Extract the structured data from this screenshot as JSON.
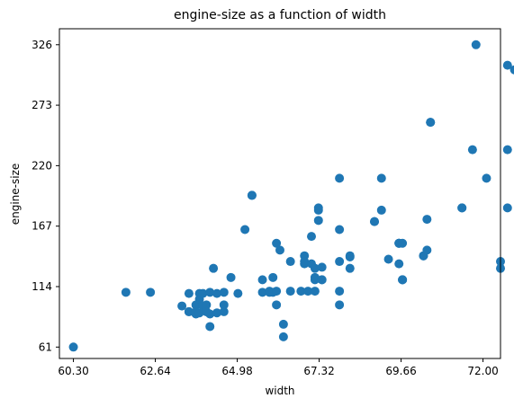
{
  "chart_data": {
    "type": "scatter",
    "title": "engine-size as a function of width",
    "xlabel": "width",
    "ylabel": "engine-size",
    "xlim": [
      59.9,
      72.5
    ],
    "ylim": [
      51,
      340
    ],
    "xticks": [
      60.3,
      62.64,
      64.98,
      67.32,
      69.66,
      72.0
    ],
    "xtick_labels": [
      "60.30",
      "62.64",
      "64.98",
      "67.32",
      "69.66",
      "72.00"
    ],
    "yticks": [
      61,
      114,
      167,
      220,
      273,
      326
    ],
    "ytick_labels": [
      "61",
      "114",
      "167",
      "220",
      "273",
      "326"
    ],
    "grid": false,
    "legend": false,
    "marker_color": "#1f77b4",
    "points": [
      [
        60.3,
        61
      ],
      [
        61.8,
        109
      ],
      [
        62.5,
        109
      ],
      [
        63.4,
        97
      ],
      [
        63.6,
        92
      ],
      [
        63.6,
        92
      ],
      [
        63.6,
        108
      ],
      [
        63.8,
        90
      ],
      [
        63.8,
        98
      ],
      [
        63.8,
        92
      ],
      [
        63.9,
        108
      ],
      [
        63.9,
        103
      ],
      [
        63.9,
        91
      ],
      [
        64.0,
        97
      ],
      [
        64.0,
        108
      ],
      [
        64.1,
        92
      ],
      [
        64.1,
        98
      ],
      [
        64.1,
        92
      ],
      [
        64.2,
        109
      ],
      [
        64.2,
        79
      ],
      [
        64.2,
        90
      ],
      [
        64.3,
        130
      ],
      [
        64.4,
        91
      ],
      [
        64.4,
        108
      ],
      [
        64.6,
        92
      ],
      [
        64.6,
        109
      ],
      [
        64.6,
        98
      ],
      [
        64.8,
        122
      ],
      [
        65.0,
        108
      ],
      [
        65.2,
        164
      ],
      [
        65.4,
        194
      ],
      [
        65.4,
        194
      ],
      [
        65.7,
        109
      ],
      [
        65.7,
        120
      ],
      [
        65.9,
        110
      ],
      [
        65.9,
        109
      ],
      [
        66.0,
        122
      ],
      [
        66.0,
        109
      ],
      [
        66.1,
        110
      ],
      [
        66.1,
        98
      ],
      [
        66.1,
        152
      ],
      [
        66.2,
        146
      ],
      [
        66.3,
        81
      ],
      [
        66.3,
        70
      ],
      [
        66.5,
        110
      ],
      [
        66.5,
        136
      ],
      [
        66.8,
        110
      ],
      [
        66.9,
        141
      ],
      [
        66.9,
        134
      ],
      [
        66.9,
        136
      ],
      [
        67.0,
        110
      ],
      [
        67.1,
        158
      ],
      [
        67.1,
        134
      ],
      [
        67.2,
        130
      ],
      [
        67.2,
        120
      ],
      [
        67.2,
        122
      ],
      [
        67.2,
        110
      ],
      [
        67.3,
        181
      ],
      [
        67.3,
        172
      ],
      [
        67.3,
        183
      ],
      [
        67.4,
        131
      ],
      [
        67.4,
        120
      ],
      [
        67.4,
        120
      ],
      [
        67.9,
        110
      ],
      [
        67.9,
        98
      ],
      [
        67.9,
        209
      ],
      [
        67.9,
        136
      ],
      [
        67.9,
        164
      ],
      [
        68.2,
        140
      ],
      [
        68.2,
        130
      ],
      [
        68.2,
        141
      ],
      [
        68.9,
        171
      ],
      [
        68.9,
        171
      ],
      [
        69.1,
        181
      ],
      [
        69.1,
        209
      ],
      [
        69.3,
        138
      ],
      [
        69.6,
        134
      ],
      [
        69.6,
        152
      ],
      [
        69.6,
        152
      ],
      [
        69.6,
        152
      ],
      [
        69.7,
        152
      ],
      [
        69.7,
        120
      ],
      [
        69.7,
        120
      ],
      [
        69.7,
        120
      ],
      [
        70.3,
        141
      ],
      [
        70.3,
        141
      ],
      [
        70.4,
        146
      ],
      [
        70.4,
        173
      ],
      [
        70.5,
        258
      ],
      [
        70.5,
        258
      ],
      [
        71.4,
        183
      ],
      [
        71.4,
        183
      ],
      [
        71.7,
        234
      ],
      [
        71.8,
        326
      ],
      [
        72.1,
        209
      ],
      [
        72.5,
        136
      ],
      [
        72.5,
        130
      ],
      [
        72.7,
        308
      ],
      [
        72.7,
        234
      ],
      [
        72.7,
        183
      ],
      [
        72.9,
        304
      ]
    ]
  }
}
